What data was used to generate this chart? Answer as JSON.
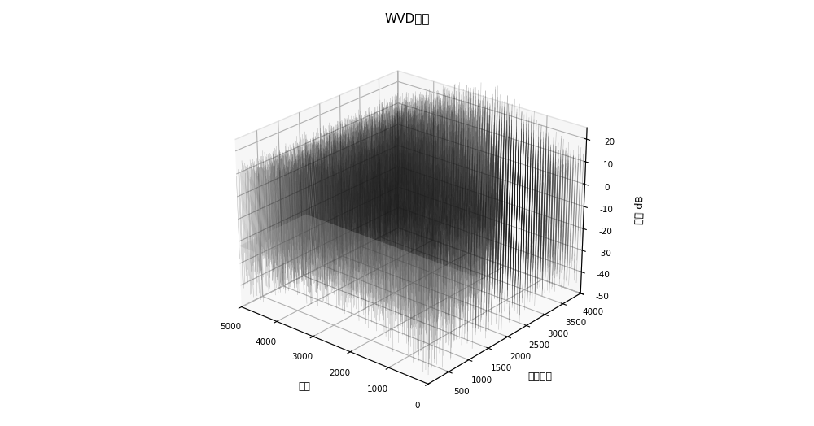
{
  "title": "WVD分布",
  "xlabel": "频率",
  "ylabel": "采样点数",
  "zlabel": "幅值 dB",
  "freq_min": 0,
  "freq_max": 5000,
  "sample_min": 0,
  "sample_max": 4000,
  "zlim_min": -50,
  "zlim_max": 25,
  "freq_ticks": [
    0,
    1000,
    2000,
    3000,
    4000,
    5000
  ],
  "sample_ticks": [
    500,
    1000,
    1500,
    2000,
    2500,
    3000,
    3500,
    4000
  ],
  "z_ticks": [
    -50,
    -40,
    -30,
    -20,
    -10,
    0,
    10,
    20
  ],
  "n_freq": 80,
  "n_samples": 60,
  "background_color": "#ffffff",
  "line_color": "#1a1a1a",
  "grid_color": "#cccccc",
  "pane_color": "#e8e8e8"
}
